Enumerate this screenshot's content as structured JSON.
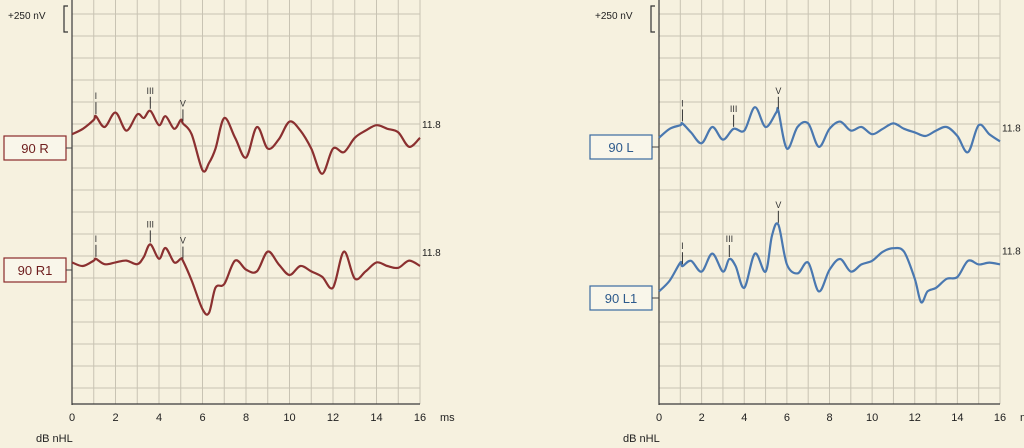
{
  "chart_data": [
    {
      "type": "line",
      "panel": "right-ear",
      "scale_label": "+250 nV",
      "xlabel": "ms",
      "xlabel_bottom": "dB nHL",
      "xlim": [
        0,
        16
      ],
      "x_ticks": [
        "0",
        "2",
        "4",
        "6",
        "8",
        "10",
        "12",
        "14",
        "16"
      ],
      "color": "#8b3030",
      "series": [
        {
          "name": "90 R",
          "end_label": "11.8",
          "peaks": [
            {
              "label": "I",
              "x": 1.1
            },
            {
              "label": "III",
              "x": 3.6
            },
            {
              "label": "V",
              "x": 5.1
            }
          ],
          "x": [
            0,
            0.5,
            1.0,
            1.1,
            1.5,
            2.0,
            2.5,
            3.0,
            3.3,
            3.6,
            4.0,
            4.3,
            4.7,
            5.0,
            5.1,
            5.5,
            6.0,
            6.3,
            6.6,
            7.0,
            7.5,
            8.0,
            8.5,
            9.0,
            9.5,
            10.0,
            10.5,
            11.0,
            11.5,
            12.0,
            12.5,
            13.0,
            13.5,
            14.0,
            14.5,
            15.0,
            15.5,
            16.0
          ],
          "y": [
            -2,
            -8,
            -18,
            -22,
            -10,
            -26,
            -6,
            -24,
            -20,
            -28,
            -12,
            -22,
            -8,
            -18,
            -14,
            -2,
            38,
            30,
            14,
            -20,
            2,
            24,
            -10,
            14,
            4,
            -16,
            -6,
            14,
            42,
            14,
            18,
            2,
            -6,
            -12,
            -8,
            -4,
            12,
            2
          ]
        },
        {
          "name": "90 R1",
          "end_label": "11.8",
          "peaks": [
            {
              "label": "I",
              "x": 1.1
            },
            {
              "label": "III",
              "x": 3.6
            },
            {
              "label": "V",
              "x": 5.1
            }
          ],
          "x": [
            0,
            0.5,
            1.0,
            1.1,
            1.5,
            2.0,
            2.5,
            3.0,
            3.3,
            3.6,
            4.0,
            4.3,
            4.7,
            5.0,
            5.1,
            5.5,
            6.0,
            6.3,
            6.6,
            7.0,
            7.5,
            8.0,
            8.5,
            9.0,
            9.5,
            10.0,
            10.5,
            11.0,
            11.5,
            12.0,
            12.5,
            13.0,
            13.5,
            14.0,
            14.5,
            15.0,
            15.5,
            16.0
          ],
          "y": [
            -4,
            0,
            -6,
            -8,
            -2,
            -4,
            -6,
            -2,
            -10,
            -24,
            -8,
            -20,
            -4,
            -8,
            -6,
            16,
            48,
            52,
            24,
            20,
            -6,
            4,
            6,
            -16,
            -2,
            10,
            0,
            6,
            12,
            24,
            -16,
            14,
            6,
            -4,
            0,
            2,
            -6,
            0
          ]
        }
      ]
    },
    {
      "type": "line",
      "panel": "left-ear",
      "scale_label": "+250 nV",
      "xlabel": "ms",
      "xlabel_bottom": "dB nHL",
      "xlim": [
        0,
        16
      ],
      "x_ticks": [
        "0",
        "2",
        "4",
        "6",
        "8",
        "10",
        "12",
        "14",
        "16"
      ],
      "color": "#4a78b0",
      "series": [
        {
          "name": "90 L",
          "end_label": "11.8",
          "peaks": [
            {
              "label": "I",
              "x": 1.1
            },
            {
              "label": "III",
              "x": 3.5
            },
            {
              "label": "V",
              "x": 5.6
            }
          ],
          "x": [
            0,
            0.5,
            1.0,
            1.1,
            1.5,
            2.0,
            2.5,
            3.0,
            3.5,
            4.0,
            4.5,
            5.0,
            5.5,
            5.6,
            6.0,
            6.5,
            7.0,
            7.5,
            8.0,
            8.5,
            9.0,
            9.5,
            10.0,
            10.5,
            11.0,
            11.5,
            12.0,
            12.5,
            13.0,
            13.5,
            14.0,
            14.5,
            15.0,
            15.5,
            16.0
          ],
          "y": [
            2,
            -8,
            -12,
            -14,
            -4,
            8,
            -10,
            4,
            -8,
            -6,
            -32,
            -10,
            -26,
            -28,
            14,
            -10,
            -14,
            12,
            -8,
            -16,
            -6,
            -10,
            -2,
            -8,
            -14,
            -8,
            -4,
            0,
            -6,
            -10,
            0,
            18,
            -12,
            -2,
            6
          ]
        },
        {
          "name": "90 L1",
          "end_label": "11.8",
          "peaks": [
            {
              "label": "I",
              "x": 1.1
            },
            {
              "label": "III",
              "x": 3.3
            },
            {
              "label": "V",
              "x": 5.6
            }
          ],
          "x": [
            0,
            0.5,
            1.0,
            1.1,
            1.5,
            2.0,
            2.5,
            3.0,
            3.3,
            3.6,
            4.0,
            4.5,
            5.0,
            5.3,
            5.6,
            6.0,
            6.5,
            7.0,
            7.5,
            8.0,
            8.5,
            9.0,
            9.5,
            10.0,
            10.5,
            11.0,
            11.5,
            12.0,
            12.3,
            12.6,
            13.0,
            13.5,
            14.0,
            14.5,
            15.0,
            15.5,
            16.0
          ],
          "y": [
            26,
            14,
            -6,
            -2,
            -8,
            4,
            -16,
            4,
            -10,
            -2,
            22,
            -16,
            4,
            -36,
            -48,
            -4,
            6,
            -6,
            26,
            2,
            -10,
            4,
            -4,
            -8,
            -18,
            -22,
            -18,
            12,
            38,
            26,
            22,
            12,
            10,
            -8,
            -4,
            -6,
            -4
          ]
        }
      ]
    }
  ]
}
